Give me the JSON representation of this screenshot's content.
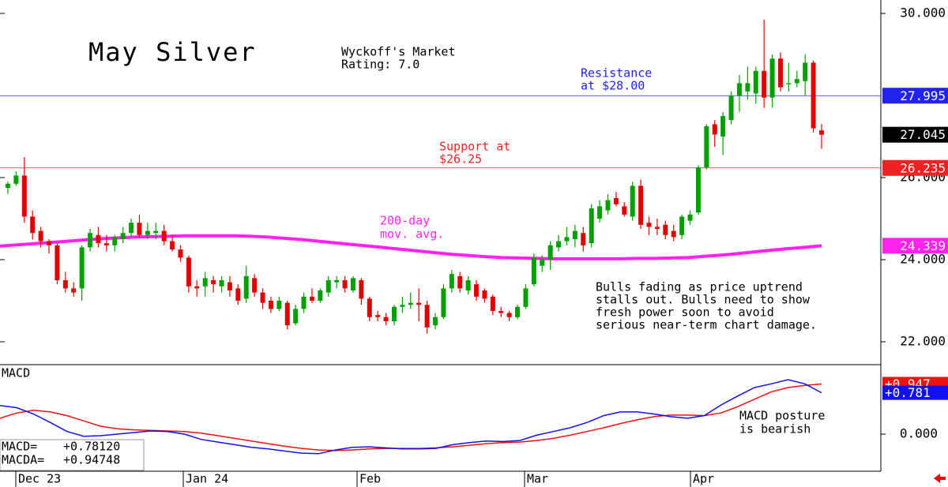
{
  "chart_data": {
    "type": "candlestick",
    "title": "May Silver",
    "up_color": "#00a000",
    "down_color": "#e00000",
    "ylim": [
      21.442,
      30.327
    ],
    "yticks": [
      {
        "value": 30,
        "label": "30.000"
      },
      {
        "value": 26,
        "label": "26.000"
      },
      {
        "value": 24,
        "label": "24.000"
      },
      {
        "value": 22,
        "label": "22.000"
      }
    ],
    "x_labels": [
      "Dec 23",
      "Jan 24",
      "Feb",
      "Mar",
      "Apr"
    ],
    "ohlc": [
      [
        25.75,
        25.9,
        25.6,
        25.85
      ],
      [
        25.85,
        26.15,
        25.8,
        26.05
      ],
      [
        26.05,
        26.5,
        24.9,
        25.05
      ],
      [
        25.05,
        25.2,
        24.5,
        24.65
      ],
      [
        24.7,
        24.8,
        24.3,
        24.45
      ],
      [
        24.45,
        24.5,
        24.15,
        24.35
      ],
      [
        24.35,
        24.4,
        23.4,
        23.5
      ],
      [
        23.5,
        23.7,
        23.2,
        23.3
      ],
      [
        23.3,
        23.45,
        23.1,
        23.2
      ],
      [
        23.3,
        24.35,
        23.0,
        24.3
      ],
      [
        24.3,
        24.75,
        24.2,
        24.65
      ],
      [
        24.6,
        24.8,
        24.3,
        24.4
      ],
      [
        24.4,
        24.6,
        24.2,
        24.35
      ],
      [
        24.35,
        24.6,
        24.2,
        24.55
      ],
      [
        24.5,
        24.8,
        24.4,
        24.65
      ],
      [
        24.65,
        25.0,
        24.55,
        24.9
      ],
      [
        24.9,
        25.1,
        24.55,
        24.6
      ],
      [
        24.6,
        24.9,
        24.5,
        24.7
      ],
      [
        24.65,
        24.9,
        24.5,
        24.7
      ],
      [
        24.7,
        24.85,
        24.35,
        24.45
      ],
      [
        24.45,
        24.6,
        24.2,
        24.25
      ],
      [
        24.25,
        24.35,
        23.95,
        24.05
      ],
      [
        24.05,
        24.1,
        23.2,
        23.35
      ],
      [
        23.35,
        23.5,
        23.1,
        23.3
      ],
      [
        23.35,
        23.7,
        23.1,
        23.55
      ],
      [
        23.5,
        23.6,
        23.2,
        23.4
      ],
      [
        23.35,
        23.6,
        23.2,
        23.5
      ],
      [
        23.45,
        23.6,
        23.1,
        23.25
      ],
      [
        23.3,
        23.4,
        22.9,
        23.0
      ],
      [
        23.05,
        23.85,
        22.95,
        23.6
      ],
      [
        23.55,
        23.65,
        23.1,
        23.2
      ],
      [
        23.2,
        23.3,
        22.8,
        22.95
      ],
      [
        23.0,
        23.1,
        22.7,
        22.8
      ],
      [
        22.8,
        23.1,
        22.75,
        23.0
      ],
      [
        22.95,
        23.0,
        22.3,
        22.4
      ],
      [
        22.45,
        22.9,
        22.4,
        22.8
      ],
      [
        22.8,
        23.2,
        22.7,
        23.1
      ],
      [
        23.1,
        23.3,
        22.95,
        23.0
      ],
      [
        23.0,
        23.3,
        22.95,
        23.25
      ],
      [
        23.2,
        23.6,
        23.1,
        23.5
      ],
      [
        23.45,
        23.6,
        23.3,
        23.5
      ],
      [
        23.5,
        23.6,
        23.2,
        23.3
      ],
      [
        23.25,
        23.6,
        23.2,
        23.55
      ],
      [
        23.5,
        23.55,
        22.9,
        23.05
      ],
      [
        23.05,
        23.1,
        22.5,
        22.6
      ],
      [
        22.65,
        22.75,
        22.5,
        22.6
      ],
      [
        22.6,
        22.7,
        22.4,
        22.5
      ],
      [
        22.5,
        22.9,
        22.4,
        22.85
      ],
      [
        22.85,
        23.1,
        22.7,
        22.9
      ],
      [
        22.9,
        23.2,
        22.8,
        22.95
      ],
      [
        22.95,
        23.3,
        22.5,
        22.9
      ],
      [
        22.9,
        23.0,
        22.2,
        22.35
      ],
      [
        22.4,
        22.7,
        22.3,
        22.6
      ],
      [
        22.6,
        23.4,
        22.55,
        23.3
      ],
      [
        23.3,
        23.75,
        23.2,
        23.65
      ],
      [
        23.6,
        23.7,
        23.2,
        23.3
      ],
      [
        23.25,
        23.6,
        23.15,
        23.5
      ],
      [
        23.4,
        23.5,
        23.0,
        23.1
      ],
      [
        23.25,
        23.3,
        22.95,
        23.05
      ],
      [
        23.1,
        23.15,
        22.65,
        22.75
      ],
      [
        22.75,
        22.85,
        22.6,
        22.7
      ],
      [
        22.7,
        22.75,
        22.5,
        22.6
      ],
      [
        22.6,
        22.9,
        22.55,
        22.85
      ],
      [
        22.85,
        23.4,
        22.8,
        23.3
      ],
      [
        23.4,
        24.15,
        23.35,
        24.05
      ],
      [
        23.85,
        24.1,
        23.7,
        24.0
      ],
      [
        24.0,
        24.45,
        23.75,
        24.35
      ],
      [
        24.3,
        24.6,
        24.2,
        24.45
      ],
      [
        24.45,
        24.8,
        24.35,
        24.55
      ],
      [
        24.5,
        24.85,
        24.3,
        24.7
      ],
      [
        24.65,
        24.8,
        24.2,
        24.35
      ],
      [
        24.4,
        25.35,
        24.3,
        25.25
      ],
      [
        25.0,
        25.45,
        24.9,
        25.3
      ],
      [
        25.2,
        25.6,
        25.1,
        25.45
      ],
      [
        25.5,
        25.65,
        25.3,
        25.35
      ],
      [
        25.3,
        25.4,
        25.05,
        25.1
      ],
      [
        25.05,
        25.9,
        24.95,
        25.8
      ],
      [
        25.8,
        25.95,
        24.75,
        24.85
      ],
      [
        24.9,
        25.05,
        24.6,
        24.8
      ],
      [
        24.8,
        25.0,
        24.6,
        24.75
      ],
      [
        24.85,
        24.95,
        24.5,
        24.6
      ],
      [
        24.7,
        24.85,
        24.45,
        24.55
      ],
      [
        24.6,
        25.1,
        24.5,
        25.05
      ],
      [
        24.95,
        25.2,
        24.85,
        25.1
      ],
      [
        25.15,
        26.3,
        25.1,
        26.25
      ],
      [
        26.25,
        27.3,
        26.2,
        27.25
      ],
      [
        27.3,
        27.4,
        26.75,
        27.05
      ],
      [
        27.0,
        27.6,
        26.55,
        27.5
      ],
      [
        27.4,
        28.1,
        27.3,
        28.0
      ],
      [
        28.0,
        28.5,
        27.6,
        28.3
      ],
      [
        28.1,
        28.7,
        27.9,
        28.3
      ],
      [
        28.05,
        28.7,
        27.8,
        28.6
      ],
      [
        28.6,
        29.85,
        27.7,
        27.95
      ],
      [
        27.95,
        29.0,
        27.7,
        28.9
      ],
      [
        28.9,
        29.05,
        28.1,
        28.2
      ],
      [
        28.3,
        28.8,
        28.1,
        28.3
      ],
      [
        28.3,
        28.6,
        28.2,
        28.4
      ],
      [
        28.35,
        29.0,
        28.0,
        28.8
      ],
      [
        28.8,
        28.85,
        27.1,
        27.2
      ],
      [
        27.15,
        27.3,
        26.7,
        27.045
      ]
    ],
    "moving_average": {
      "color": "#ff22ee",
      "values": [
        24.33,
        24.36,
        24.39,
        24.42,
        24.45,
        24.48,
        24.51,
        24.53,
        24.55,
        24.56,
        24.57,
        24.58,
        24.58,
        24.58,
        24.58,
        24.57,
        24.55,
        24.52,
        24.49,
        24.45,
        24.41,
        24.37,
        24.33,
        24.29,
        24.25,
        24.21,
        24.17,
        24.13,
        24.1,
        24.07,
        24.05,
        24.04,
        24.03,
        24.02,
        24.02,
        24.02,
        24.02,
        24.02,
        24.03,
        24.03,
        24.04,
        24.05,
        24.08,
        24.11,
        24.15,
        24.19,
        24.23,
        24.27,
        24.3,
        24.339
      ]
    },
    "levels": [
      {
        "value": 27.995,
        "label": "27.995",
        "color": "#2222ee",
        "line": true
      },
      {
        "value": 27.045,
        "label": "27.045",
        "color": "#000000",
        "line": false
      },
      {
        "value": 26.235,
        "label": "26.235",
        "color": "#ee2222",
        "line": true
      },
      {
        "value": 24.339,
        "label": "24.339",
        "color": "#ff22ee",
        "line": false
      }
    ],
    "annotations": {
      "rating": [
        "Wyckoff's Market",
        "Rating: 7.0"
      ],
      "resistance": [
        "Resistance",
        "at $28.00"
      ],
      "support": [
        "Support at",
        "$26.25"
      ],
      "moving_average": [
        "200-day",
        "mov. avg."
      ],
      "comment": [
        "Bulls fading as price uptrend",
        "stalls out. Bulls need to show",
        "fresh power soon to avoid",
        "serious near-term chart damage."
      ],
      "macd_comment": [
        "MACD posture",
        "is bearish"
      ]
    },
    "macd": {
      "title": "MACD",
      "ylim": [
        -0.701,
        1.313
      ],
      "yticks": [
        {
          "value": 0,
          "label": "0.000"
        }
      ],
      "series": [
        {
          "name": "MACDA=",
          "color": "#ee1111",
          "tag": "+0.947",
          "readout": "+0.94748",
          "values": [
            0.3,
            0.4,
            0.45,
            0.42,
            0.35,
            0.25,
            0.15,
            0.1,
            0.08,
            0.07,
            0.06,
            0.05,
            0.02,
            -0.03,
            -0.08,
            -0.13,
            -0.18,
            -0.23,
            -0.27,
            -0.3,
            -0.31,
            -0.3,
            -0.28,
            -0.27,
            -0.27,
            -0.27,
            -0.26,
            -0.24,
            -0.21,
            -0.18,
            -0.16,
            -0.15,
            -0.12,
            -0.08,
            -0.02,
            0.05,
            0.12,
            0.2,
            0.27,
            0.33,
            0.36,
            0.36,
            0.35,
            0.4,
            0.52,
            0.66,
            0.8,
            0.88,
            0.92,
            0.94748
          ]
        },
        {
          "name": "MACD=",
          "color": "#1111ee",
          "tag": "+0.781",
          "readout": "+0.78120",
          "values": [
            0.54,
            0.5,
            0.38,
            0.22,
            0.05,
            -0.04,
            -0.03,
            0.0,
            0.03,
            0.06,
            0.05,
            0.0,
            -0.1,
            -0.15,
            -0.2,
            -0.25,
            -0.28,
            -0.32,
            -0.36,
            -0.37,
            -0.3,
            -0.25,
            -0.24,
            -0.26,
            -0.28,
            -0.28,
            -0.27,
            -0.2,
            -0.16,
            -0.13,
            -0.14,
            -0.12,
            -0.02,
            0.05,
            0.12,
            0.22,
            0.35,
            0.42,
            0.42,
            0.38,
            0.33,
            0.3,
            0.35,
            0.55,
            0.72,
            0.88,
            0.95,
            1.03,
            0.95,
            0.7812
          ]
        }
      ]
    }
  }
}
